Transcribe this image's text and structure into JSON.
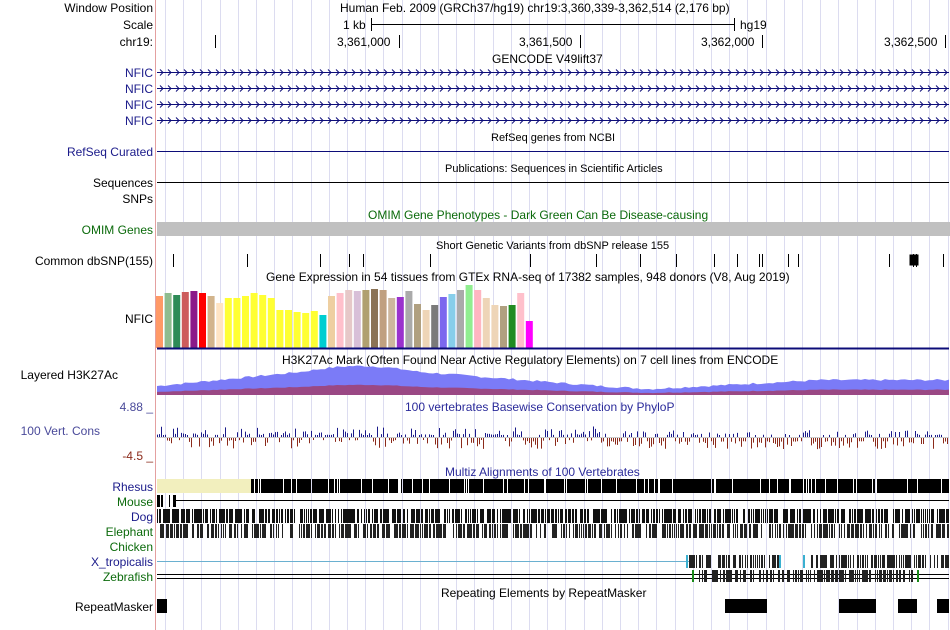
{
  "header": {
    "window_position_label": "Window Position",
    "position_text": "Human Feb. 2009 (GRCh37/hg19)   chr19:3,360,339-3,362,514 (2,176 bp)",
    "scale_label": "Scale",
    "scale_bar_text": "1 kb",
    "assembly": "hg19",
    "chrom_label": "chr19:",
    "ticks": [
      "3,361,000",
      "3,361,500",
      "3,362,000",
      "3,362,500"
    ]
  },
  "tracks": {
    "gencode": {
      "title": "GENCODE V49lift37",
      "items": [
        "NFIC",
        "NFIC",
        "NFIC",
        "NFIC"
      ]
    },
    "refseq": {
      "title": "RefSeq genes from NCBI",
      "label": "RefSeq Curated"
    },
    "publications": {
      "title": "Publications: Sequences in Scientific Articles",
      "label1": "Sequences",
      "label2": "SNPs"
    },
    "omim": {
      "title": "OMIM Gene Phenotypes - Dark Green Can Be Disease-causing",
      "label": "OMIM Genes"
    },
    "dbsnp": {
      "title": "Short Genetic Variants from dbSNP release 155",
      "label": "Common dbSNP(155)"
    },
    "gtex": {
      "title": "Gene Expression in 54 tissues from GTEx RNA-seq of 17382 samples, 948 donors (V8, Aug 2019)",
      "label": "NFIC"
    },
    "h3k27ac": {
      "title": "H3K27Ac Mark (Often Found Near Active Regulatory Elements) on 7 cell lines from ENCODE",
      "label": "Layered H3K27Ac"
    },
    "phylop": {
      "title": "100 vertebrates Basewise Conservation by PhyloP",
      "label": "100 Vert. Cons",
      "max": "4.88 _",
      "min": "-4.5 _"
    },
    "multiz": {
      "title": "Multiz Alignments of 100 Vertebrates",
      "species": [
        "Rhesus",
        "Mouse",
        "Dog",
        "Elephant",
        "Chicken",
        "X_tropicalis",
        "Zebrafish"
      ]
    },
    "repeatmasker": {
      "title": "Repeating Elements by RepeatMasker",
      "label": "RepeatMasker"
    }
  },
  "colors": {
    "gene_blue": "#0c0c78",
    "omim_gray": "#c0c0c0",
    "h3k27ac_blue": "#7b7bf7",
    "conservation_blue": "#1a1a8a",
    "conservation_red": "#8b2a1a",
    "rhesus_gap": "#f2efbe",
    "gtex_magenta": "#ff00ff"
  }
}
